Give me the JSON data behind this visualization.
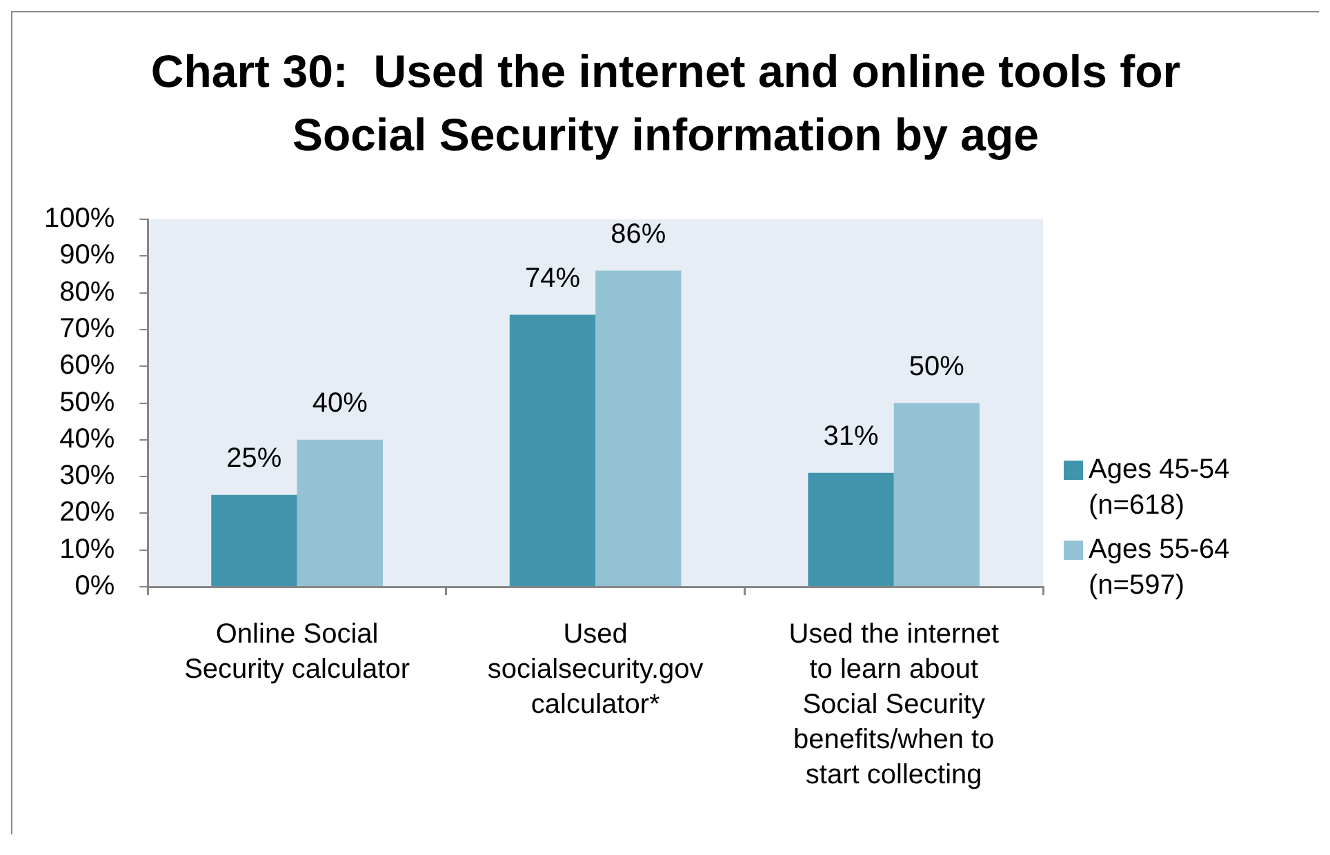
{
  "chart_data": {
    "type": "bar",
    "title": "Chart 30:  Used the internet and online tools for Social Security information by age",
    "categories": [
      "Online Social Security calculator",
      "Used socialsecurity.gov calculator*",
      "Used the internet to learn about Social Security benefits/when to start collecting"
    ],
    "series": [
      {
        "name": "Ages 45-54 (n=618)",
        "color": "#4095ad",
        "values": [
          25,
          74,
          31
        ],
        "value_labels": [
          "25%",
          "74%",
          "31%"
        ]
      },
      {
        "name": "Ages 55-64 (n=597)",
        "color": "#93c2d4",
        "values": [
          40,
          86,
          50
        ],
        "value_labels": [
          "40%",
          "86%",
          "50%"
        ]
      }
    ],
    "ylim": [
      0,
      100
    ],
    "yticks": [
      {
        "value": 0,
        "label": "0%"
      },
      {
        "value": 10,
        "label": "10%"
      },
      {
        "value": 20,
        "label": "20%"
      },
      {
        "value": 30,
        "label": "30%"
      },
      {
        "value": 40,
        "label": "40%"
      },
      {
        "value": 50,
        "label": "50%"
      },
      {
        "value": 60,
        "label": "60%"
      },
      {
        "value": 70,
        "label": "70%"
      },
      {
        "value": 80,
        "label": "80%"
      },
      {
        "value": 90,
        "label": "90%"
      },
      {
        "value": 100,
        "label": "100%"
      }
    ],
    "legend": "right"
  }
}
